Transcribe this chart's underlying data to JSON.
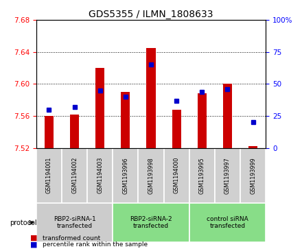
{
  "title": "GDS5355 / ILMN_1808633",
  "samples": [
    "GSM1194001",
    "GSM1194002",
    "GSM1194003",
    "GSM1193996",
    "GSM1193998",
    "GSM1194000",
    "GSM1193995",
    "GSM1193997",
    "GSM1193999"
  ],
  "red_values": [
    7.56,
    7.562,
    7.62,
    7.59,
    7.645,
    7.568,
    7.588,
    7.6,
    7.522
  ],
  "blue_values": [
    30,
    32,
    45,
    40,
    65,
    37,
    44,
    46,
    20
  ],
  "ylim_left": [
    7.52,
    7.68
  ],
  "ylim_right": [
    0,
    100
  ],
  "yticks_left": [
    7.52,
    7.56,
    7.6,
    7.64,
    7.68
  ],
  "yticks_right": [
    0,
    25,
    50,
    75,
    100
  ],
  "group_spans": [
    {
      "start": 0,
      "end": 2,
      "color": "#cccccc",
      "label": "RBP2-siRNA-1\ntransfected"
    },
    {
      "start": 3,
      "end": 5,
      "color": "#88dd88",
      "label": "RBP2-siRNA-2\ntransfected"
    },
    {
      "start": 6,
      "end": 8,
      "color": "#88dd88",
      "label": "control siRNA\ntransfected"
    }
  ],
  "legend_labels": [
    "transformed count",
    "percentile rank within the sample"
  ],
  "legend_colors": [
    "#cc0000",
    "#0000cc"
  ],
  "protocol_label": "protocol",
  "bar_color": "#cc0000",
  "dot_color": "#0000cc",
  "bar_bottom": 7.52,
  "grid_color": "#000000",
  "sample_box_color": "#d0d0d0",
  "plot_bg": "#ffffff"
}
